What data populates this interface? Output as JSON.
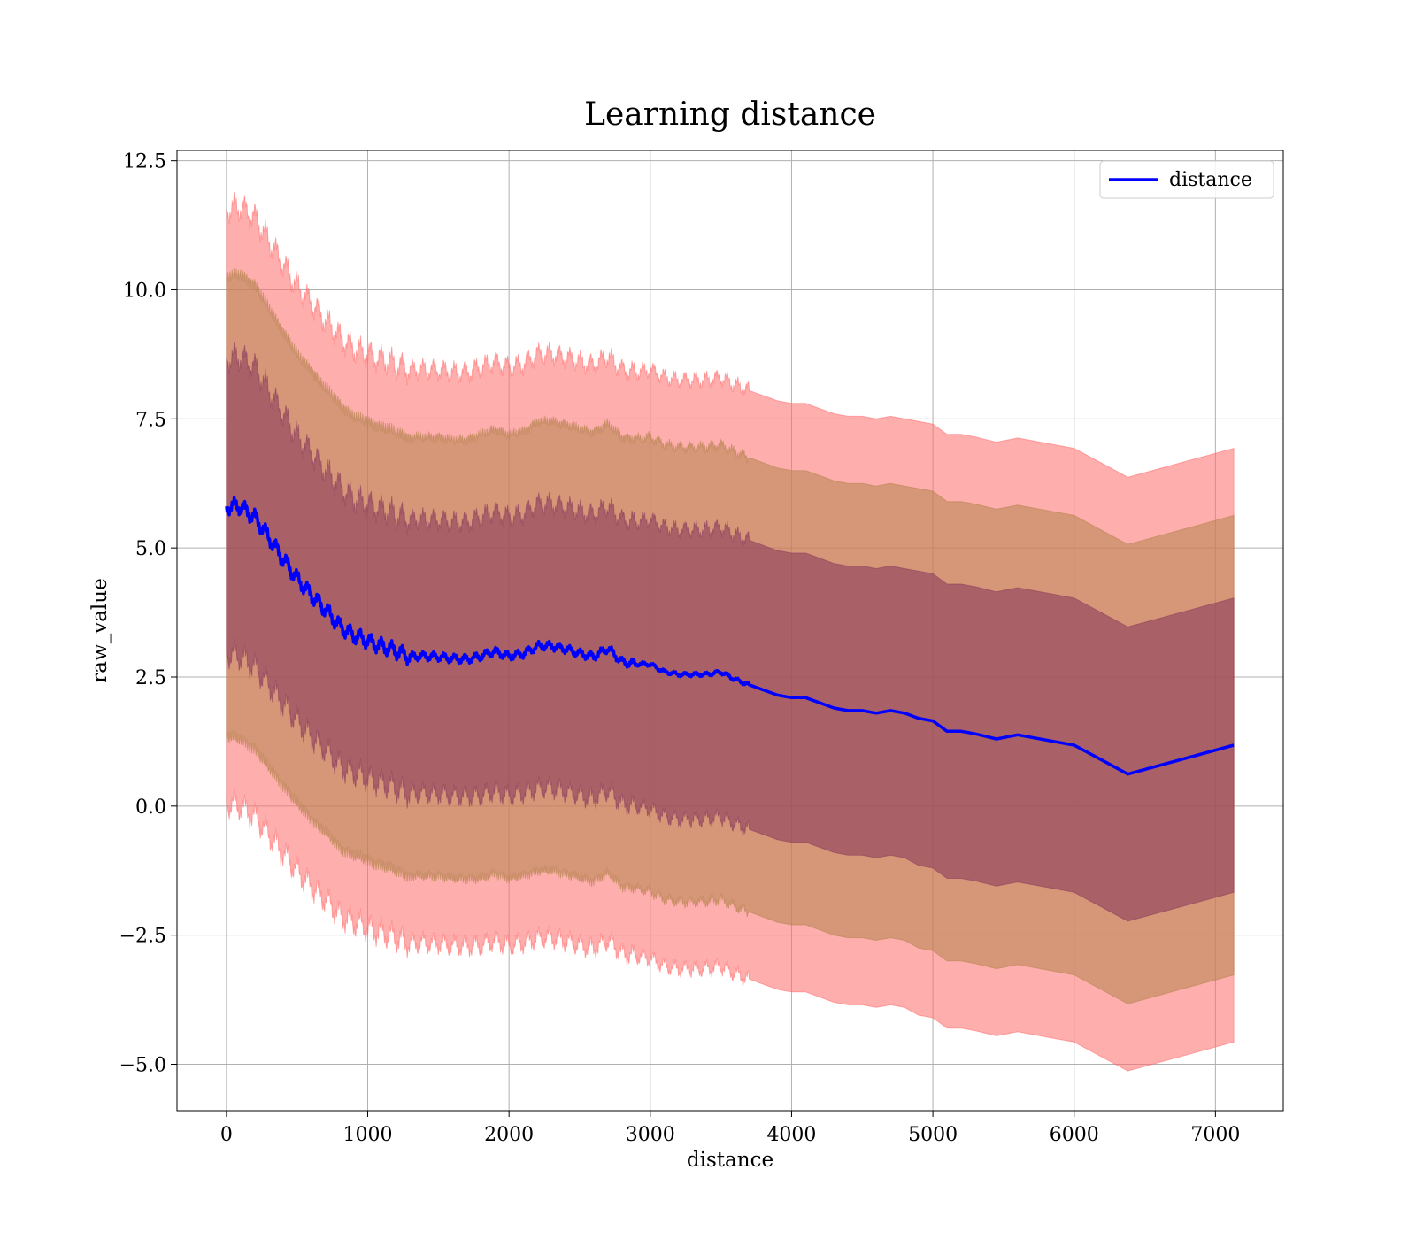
{
  "chart_data": {
    "type": "line",
    "title": "Learning distance",
    "xlabel": "distance",
    "ylabel": "raw_value",
    "xlim": [
      -350,
      7480
    ],
    "ylim": [
      -5.9,
      12.7
    ],
    "xticks": [
      0,
      1000,
      2000,
      3000,
      4000,
      5000,
      6000,
      7000
    ],
    "xtick_labels": [
      "0",
      "1000",
      "2000",
      "3000",
      "4000",
      "5000",
      "6000",
      "7000"
    ],
    "yticks": [
      12.5,
      10.0,
      7.5,
      5.0,
      2.5,
      0.0,
      -2.5,
      -5.0
    ],
    "ytick_labels": [
      "12.5",
      "10.0",
      "7.5",
      "5.0",
      "2.5",
      "0.0",
      "−2.5",
      "−5.0"
    ],
    "grid": true,
    "legend_position": "top-right",
    "series": [
      {
        "name": "distance",
        "color": "#0000ff",
        "x": [
          0,
          100,
          200,
          300,
          400,
          500,
          600,
          700,
          800,
          900,
          1000,
          1100,
          1200,
          1300,
          1400,
          1500,
          1600,
          1700,
          1800,
          1900,
          2000,
          2100,
          2200,
          2300,
          2400,
          2500,
          2600,
          2700,
          2800,
          2900,
          3000,
          3100,
          3200,
          3300,
          3400,
          3500,
          3600,
          3700,
          3800,
          3900,
          4000,
          4100,
          4200,
          4300,
          4400,
          4500,
          4600,
          4700,
          4800,
          4900,
          5000,
          5100,
          5200,
          5300,
          5450,
          5600,
          6000,
          6380,
          7130
        ],
        "y": [
          5.8,
          5.8,
          5.6,
          5.2,
          4.8,
          4.4,
          4.1,
          3.8,
          3.5,
          3.3,
          3.2,
          3.1,
          3.0,
          2.9,
          2.9,
          2.9,
          2.85,
          2.85,
          2.9,
          3.0,
          2.9,
          2.95,
          3.1,
          3.1,
          3.05,
          2.95,
          2.9,
          3.05,
          2.8,
          2.75,
          2.75,
          2.6,
          2.55,
          2.55,
          2.55,
          2.6,
          2.45,
          2.35,
          2.25,
          2.15,
          2.1,
          2.1,
          2.0,
          1.9,
          1.85,
          1.85,
          1.8,
          1.85,
          1.8,
          1.7,
          1.65,
          1.45,
          1.45,
          1.4,
          1.3,
          1.38,
          1.18,
          0.62,
          1.18
        ],
        "band_inner": [
          2.85,
          2.9,
          2.9,
          2.85,
          2.8,
          2.75,
          2.75,
          2.7,
          2.7,
          2.65,
          2.65,
          2.65,
          2.65,
          2.65,
          2.65,
          2.65,
          2.65,
          2.65,
          2.7,
          2.7,
          2.7,
          2.7,
          2.75,
          2.75,
          2.75,
          2.75,
          2.75,
          2.75,
          2.75,
          2.75,
          2.8,
          2.8,
          2.8,
          2.8,
          2.8,
          2.8,
          2.8,
          2.8,
          2.8,
          2.8,
          2.8,
          2.8,
          2.8,
          2.8,
          2.8,
          2.8,
          2.8,
          2.8,
          2.8,
          2.85,
          2.85,
          2.85,
          2.85,
          2.85,
          2.85,
          2.85,
          2.85,
          2.85,
          2.85
        ],
        "band_middle": [
          4.45,
          4.5,
          4.5,
          4.45,
          4.4,
          4.35,
          4.35,
          4.3,
          4.3,
          4.25,
          4.25,
          4.25,
          4.25,
          4.25,
          4.25,
          4.25,
          4.25,
          4.25,
          4.3,
          4.3,
          4.3,
          4.3,
          4.35,
          4.35,
          4.35,
          4.35,
          4.35,
          4.35,
          4.35,
          4.35,
          4.4,
          4.4,
          4.4,
          4.4,
          4.4,
          4.4,
          4.4,
          4.4,
          4.4,
          4.4,
          4.4,
          4.4,
          4.4,
          4.4,
          4.4,
          4.4,
          4.4,
          4.4,
          4.4,
          4.45,
          4.45,
          4.45,
          4.45,
          4.45,
          4.45,
          4.45,
          4.45,
          4.45,
          4.45
        ],
        "band_outer": [
          5.75,
          5.8,
          5.8,
          5.75,
          5.7,
          5.65,
          5.65,
          5.6,
          5.6,
          5.55,
          5.55,
          5.55,
          5.55,
          5.55,
          5.55,
          5.55,
          5.55,
          5.55,
          5.6,
          5.6,
          5.6,
          5.6,
          5.65,
          5.65,
          5.65,
          5.65,
          5.65,
          5.65,
          5.65,
          5.65,
          5.7,
          5.7,
          5.7,
          5.7,
          5.7,
          5.7,
          5.7,
          5.7,
          5.7,
          5.7,
          5.7,
          5.7,
          5.7,
          5.7,
          5.7,
          5.7,
          5.7,
          5.7,
          5.7,
          5.75,
          5.75,
          5.75,
          5.75,
          5.75,
          5.75,
          5.75,
          5.75,
          5.75,
          5.75
        ]
      }
    ],
    "band_colors": {
      "outer": "#ff6b6b",
      "middle": "#b5834d",
      "inner": "#8b3d5c"
    }
  }
}
